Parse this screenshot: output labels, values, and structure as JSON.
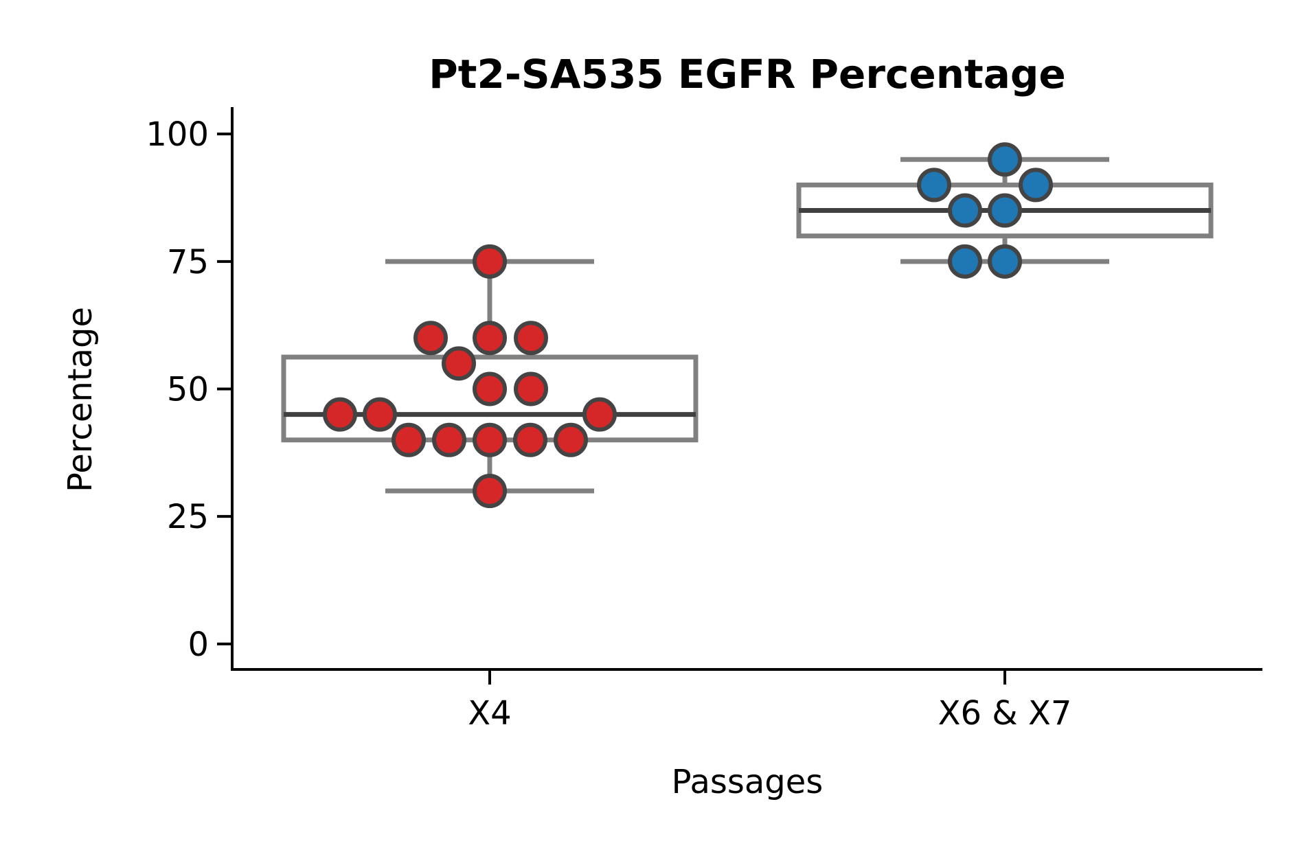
{
  "chart_data": {
    "type": "box",
    "title": "Pt2-SA535 EGFR Percentage",
    "xlabel": "Passages",
    "ylabel": "Percentage",
    "ylim": [
      -5,
      105
    ],
    "yticks": [
      0,
      25,
      50,
      75,
      100
    ],
    "yticklabels": [
      "0",
      "25",
      "50",
      "75",
      "100"
    ],
    "grid": false,
    "categories": [
      "X4",
      "X6 & X7"
    ],
    "boxes": [
      {
        "category": "X4",
        "whisker_low": 30,
        "q1": 40,
        "median": 45,
        "q3": 56.25,
        "whisker_high": 75,
        "color": "#d62728",
        "points": [
          75,
          60,
          60,
          60,
          55,
          50,
          50,
          45,
          45,
          45,
          40,
          40,
          40,
          40,
          40,
          30
        ]
      },
      {
        "category": "X6 & X7",
        "whisker_low": 75,
        "q1": 80,
        "median": 85,
        "q3": 90,
        "whisker_high": 95,
        "color": "#1f77b4",
        "points": [
          95,
          90,
          90,
          85,
          85,
          75,
          75
        ]
      }
    ],
    "box_edge_color": "#808080",
    "median_color": "#404040",
    "point_edge_color": "#444444"
  }
}
